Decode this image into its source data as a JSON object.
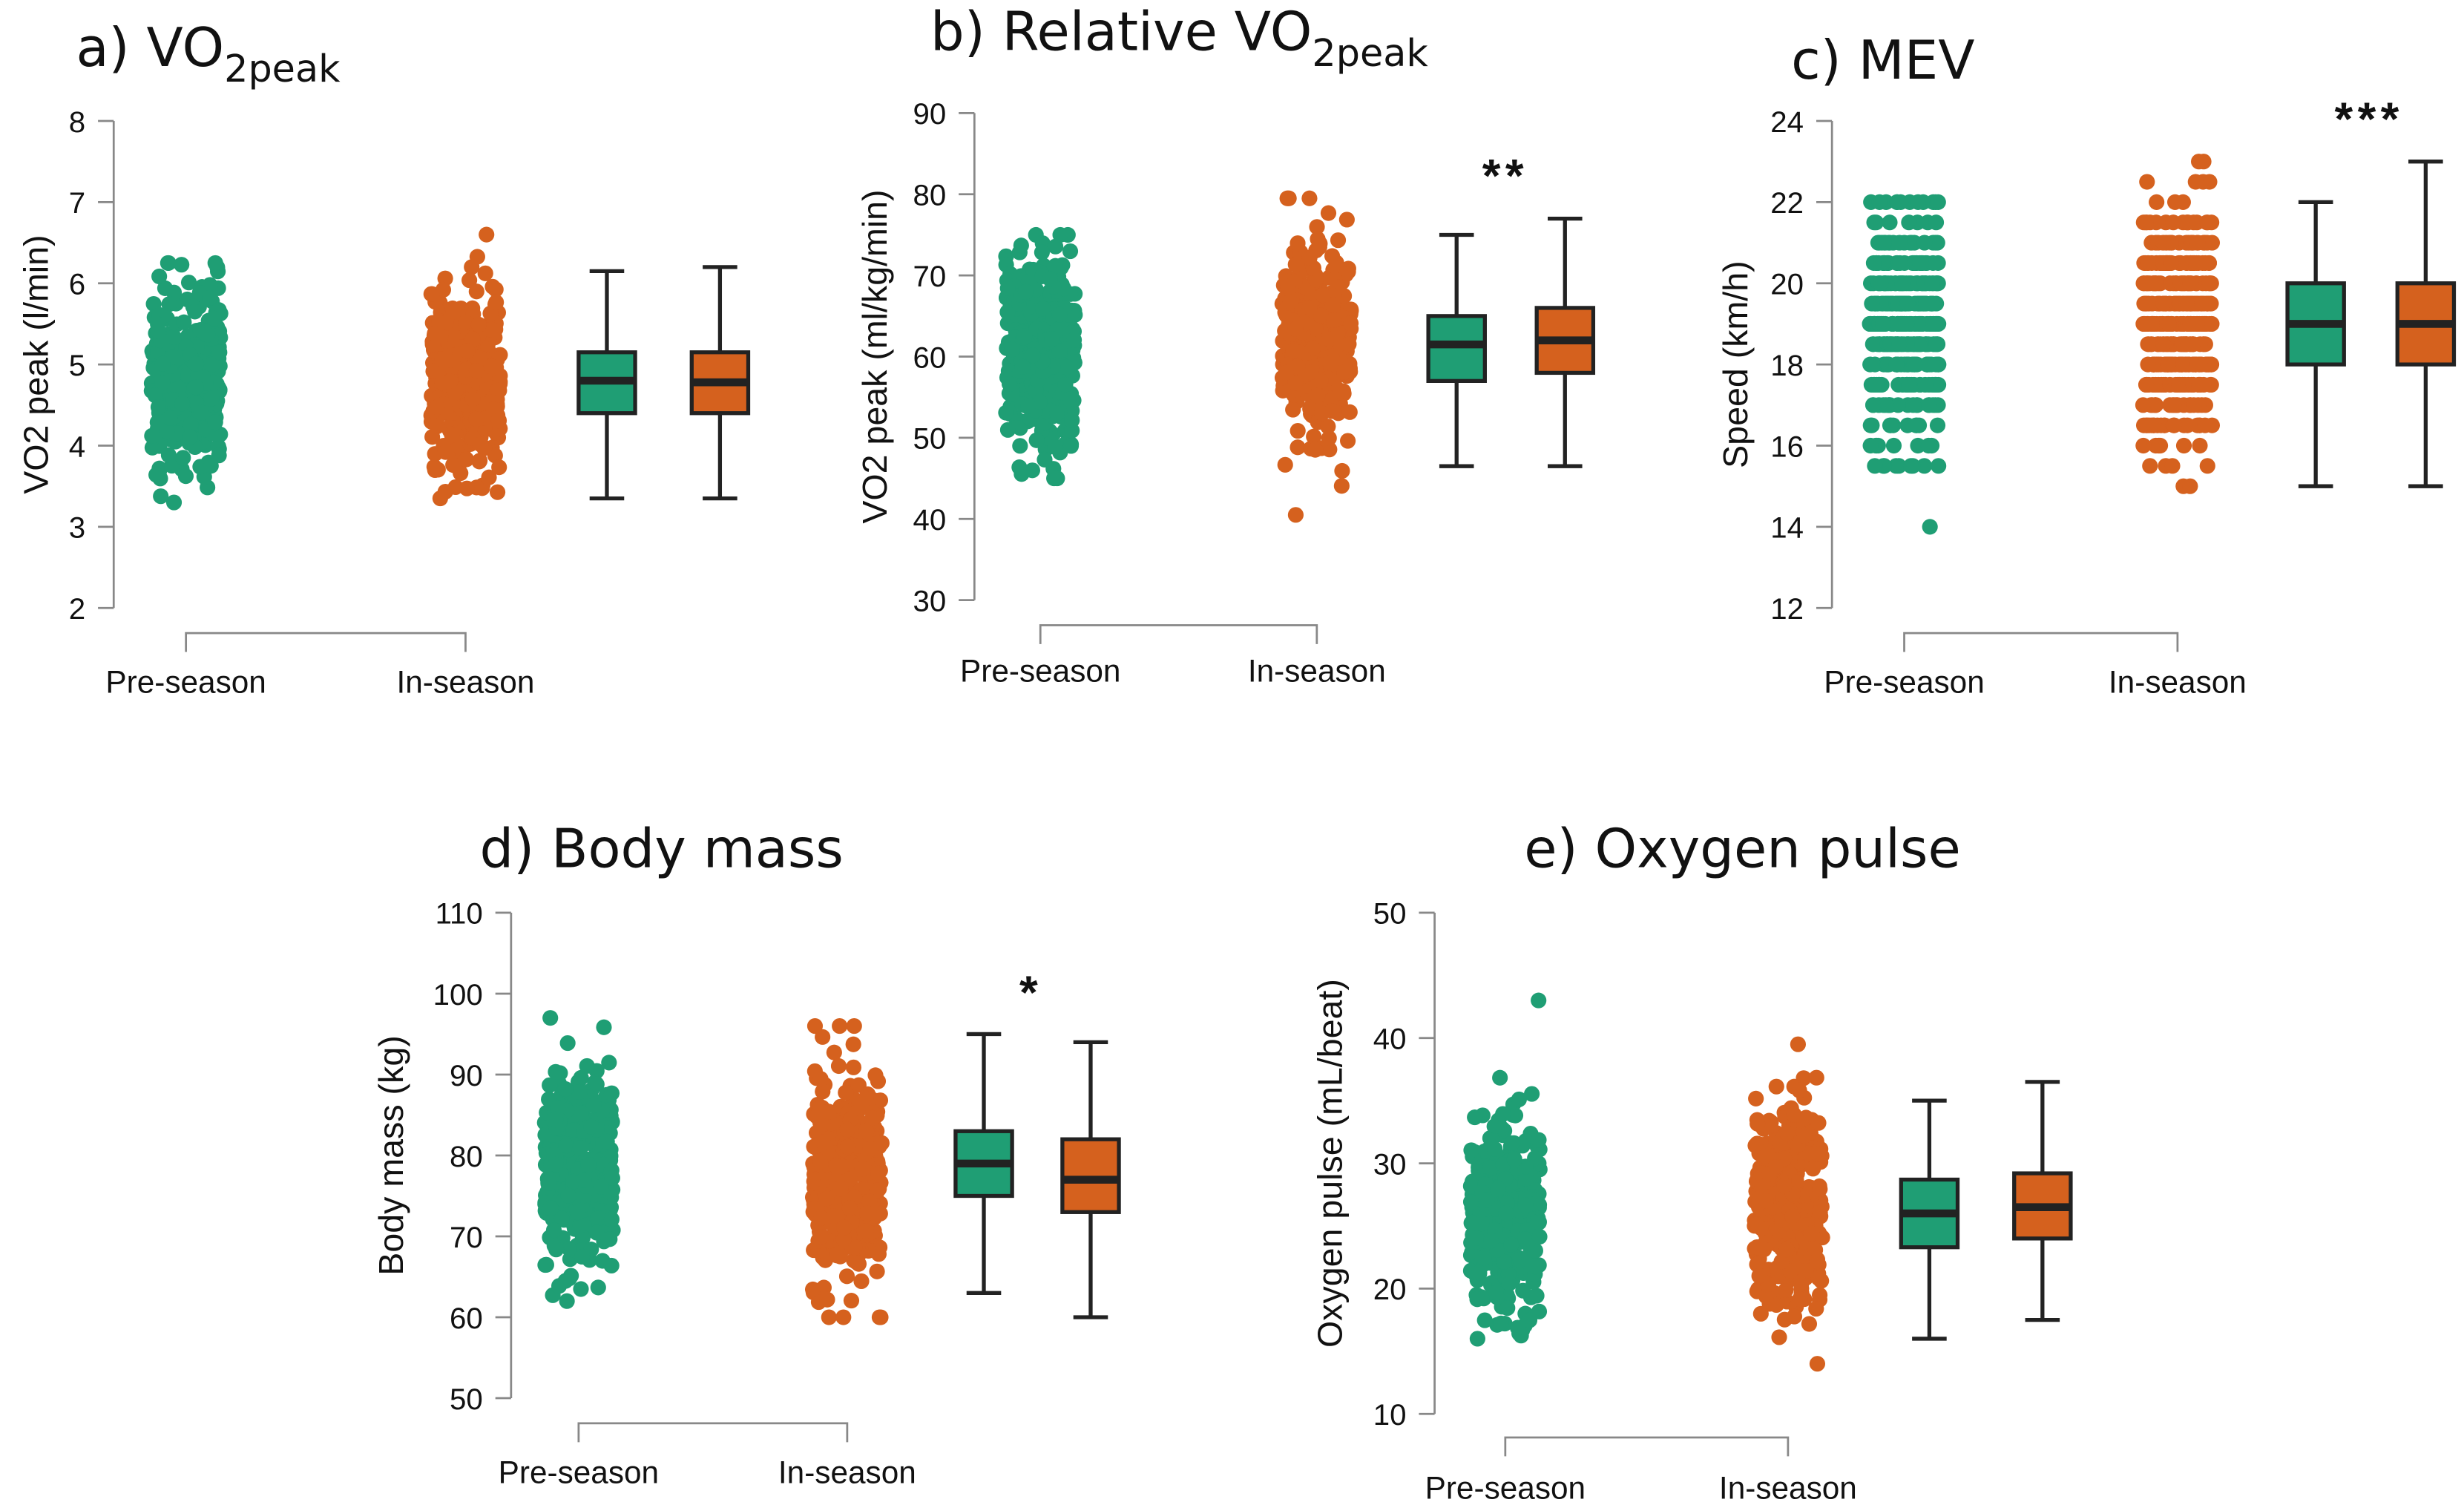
{
  "colors": {
    "pre": "#1f9e74",
    "in": "#d5611e",
    "box_edge": "#222222",
    "axis": "#888888"
  },
  "chart_data": [
    {
      "type": "box-jitter",
      "title_main": "a) VO",
      "title_sub": "2peak",
      "ylabel": "VO2 peak (l/min)",
      "ylim": [
        2,
        8
      ],
      "yticks": [
        "2",
        "3",
        "4",
        "5",
        "6",
        "7",
        "8"
      ],
      "categories": [
        "Pre-season",
        "In-season"
      ],
      "significance": "",
      "boxes": [
        {
          "group": "Pre-season",
          "min": 3.35,
          "q1": 4.4,
          "median": 4.8,
          "q3": 5.15,
          "max": 6.15
        },
        {
          "group": "In-season",
          "min": 3.35,
          "q1": 4.4,
          "median": 4.78,
          "q3": 5.15,
          "max": 6.2
        }
      ],
      "point_range": [
        [
          3.3,
          6.25
        ],
        [
          3.35,
          6.6
        ]
      ]
    },
    {
      "type": "box-jitter",
      "title_main": "b) Relative VO",
      "title_sub": "2peak",
      "ylabel": "VO2 peak (ml/kg/min)",
      "ylim": [
        30,
        90
      ],
      "yticks": [
        "30",
        "40",
        "50",
        "60",
        "70",
        "80",
        "90"
      ],
      "categories": [
        "Pre-season",
        "In-season"
      ],
      "significance": "**",
      "boxes": [
        {
          "group": "Pre-season",
          "min": 46.5,
          "q1": 57,
          "median": 61.5,
          "q3": 65,
          "max": 75
        },
        {
          "group": "In-season",
          "min": 46.5,
          "q1": 58,
          "median": 62,
          "q3": 66,
          "max": 77
        }
      ],
      "point_range": [
        [
          45,
          75
        ],
        [
          40.5,
          79.5
        ]
      ]
    },
    {
      "type": "box-jitter",
      "title_main": "c) MEV",
      "title_sub": "",
      "ylabel": "Speed (km/h)",
      "ylim": [
        12,
        24
      ],
      "yticks": [
        "12",
        "14",
        "16",
        "18",
        "20",
        "22",
        "24"
      ],
      "categories": [
        "Pre-season",
        "In-season"
      ],
      "significance": "***",
      "boxes": [
        {
          "group": "Pre-season",
          "min": 15,
          "q1": 18,
          "median": 19,
          "q3": 20,
          "max": 22
        },
        {
          "group": "In-season",
          "min": 15,
          "q1": 18,
          "median": 19,
          "q3": 20,
          "max": 23
        }
      ],
      "point_range": [
        [
          14,
          22
        ],
        [
          15,
          23
        ]
      ]
    },
    {
      "type": "box-jitter",
      "title_main": "d) Body mass",
      "title_sub": "",
      "ylabel": "Body mass (kg)",
      "ylim": [
        50,
        110
      ],
      "yticks": [
        "50",
        "60",
        "70",
        "80",
        "90",
        "100",
        "110"
      ],
      "categories": [
        "Pre-season",
        "In-season"
      ],
      "significance": "*",
      "boxes": [
        {
          "group": "Pre-season",
          "min": 63,
          "q1": 75,
          "median": 79,
          "q3": 83,
          "max": 95
        },
        {
          "group": "In-season",
          "min": 60,
          "q1": 73,
          "median": 77,
          "q3": 82,
          "max": 94
        }
      ],
      "point_range": [
        [
          62,
          97
        ],
        [
          60,
          96
        ]
      ]
    },
    {
      "type": "box-jitter",
      "title_main": "e) Oxygen pulse",
      "title_sub": "",
      "ylabel": "Oxygen pulse (mL/beat)",
      "ylim": [
        10,
        50
      ],
      "yticks": [
        "10",
        "20",
        "30",
        "40",
        "50"
      ],
      "categories": [
        "Pre-season",
        "In-season"
      ],
      "significance": "",
      "boxes": [
        {
          "group": "Pre-season",
          "min": 16,
          "q1": 23.3,
          "median": 26,
          "q3": 28.7,
          "max": 35
        },
        {
          "group": "In-season",
          "min": 17.5,
          "q1": 24,
          "median": 26.5,
          "q3": 29.2,
          "max": 36.5
        }
      ],
      "point_range": [
        [
          16,
          43
        ],
        [
          14,
          39.5
        ]
      ]
    }
  ]
}
